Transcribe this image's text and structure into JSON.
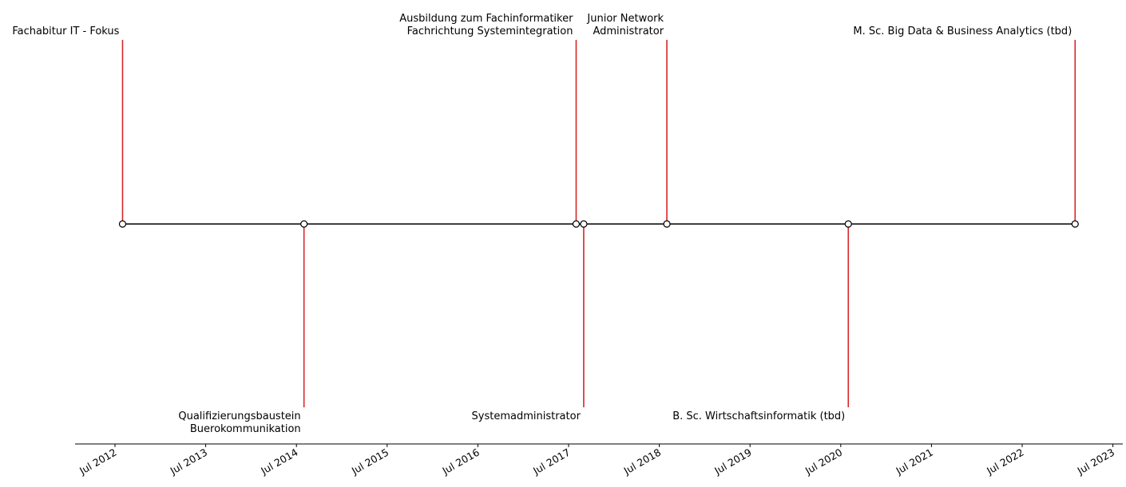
{
  "chart_data": {
    "type": "timeline",
    "title": "",
    "xlabel": "",
    "ylabel": "",
    "stem_color": "#d62728",
    "axis_line_color": "#000000",
    "marker_face_color": "#ffffff",
    "x_ticks": [
      "Jul 2012",
      "Jul 2013",
      "Jul 2014",
      "Jul 2015",
      "Jul 2016",
      "Jul 2017",
      "Jul 2018",
      "Jul 2019",
      "Jul 2020",
      "Jul 2021",
      "Jul 2022",
      "Jul 2023"
    ],
    "events": [
      {
        "date": "2012-08",
        "label": "Fachabitur IT - Fokus",
        "side": "above"
      },
      {
        "date": "2014-08",
        "label": "Qualifizierungsbaustein\nBuerokommunikation",
        "side": "below"
      },
      {
        "date": "2017-08",
        "label": "Ausbildung zum Fachinformatiker\nFachrichtung Systemintegration",
        "side": "above"
      },
      {
        "date": "2017-09",
        "label": "Systemadministrator",
        "side": "below"
      },
      {
        "date": "2018-08",
        "label": "Junior Network\nAdministrator",
        "side": "above"
      },
      {
        "date": "2020-08",
        "label": "B. Sc. Wirtschaftsinformatik (tbd)",
        "side": "below"
      },
      {
        "date": "2023-02",
        "label": "M. Sc. Big Data & Business Analytics (tbd)",
        "side": "above"
      }
    ]
  }
}
